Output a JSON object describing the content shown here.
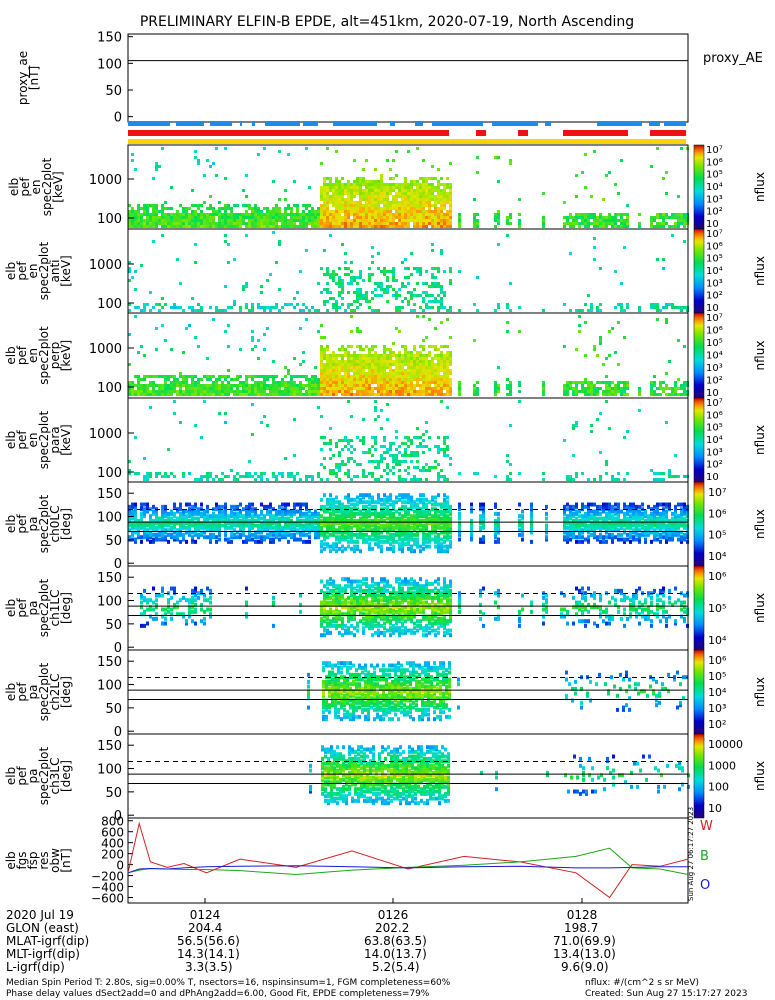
{
  "title": "PRELIMINARY ELFIN-B EPDE, alt=451km, 2020-07-19, North Ascending",
  "chart_data": [
    {
      "type": "line",
      "name": "proxy_ae",
      "ylabel": [
        "proxy_ae",
        "[nT]"
      ],
      "legend": "proxy_AE",
      "ylim": [
        -10,
        155
      ],
      "yticks": [
        "150",
        "100",
        "50",
        "0"
      ],
      "reference_line": 105
    },
    {
      "type": "heatmap",
      "ylabel": [
        "elb",
        "pef",
        "en",
        "spec2plot",
        "[keV]"
      ],
      "yticks": [
        "1000",
        "100"
      ],
      "colorbar_label": "nflux",
      "colorbar_max_exp": 7,
      "colorbar_min_exp": 1
    },
    {
      "type": "heatmap",
      "ylabel": [
        "elb",
        "pef",
        "en",
        "spec2plot",
        "anti",
        "[keV]"
      ],
      "yticks": [
        "1000",
        "100"
      ],
      "colorbar_label": "nflux",
      "colorbar_max_exp": 7,
      "colorbar_min_exp": 1
    },
    {
      "type": "heatmap",
      "ylabel": [
        "elb",
        "pef",
        "en",
        "spec2plot",
        "perp",
        "[keV]"
      ],
      "yticks": [
        "1000",
        "100"
      ],
      "colorbar_label": "nflux",
      "colorbar_max_exp": 7,
      "colorbar_min_exp": 1
    },
    {
      "type": "heatmap",
      "ylabel": [
        "elb",
        "pef",
        "en",
        "spec2plot",
        "para",
        "[keV]"
      ],
      "yticks": [
        "1000",
        "100"
      ],
      "colorbar_label": "nflux",
      "colorbar_max_exp": 7,
      "colorbar_min_exp": 1
    },
    {
      "type": "heatmap",
      "ylabel": [
        "elb",
        "pef",
        "pa",
        "spec2plot",
        "ch0LC",
        "[deg]"
      ],
      "yticks": [
        "150",
        "100",
        "50",
        "0"
      ],
      "colorbar_label": "nflux",
      "colorbar_ticks": [
        "10⁷",
        "10⁶",
        "10⁵",
        "10⁴"
      ]
    },
    {
      "type": "heatmap",
      "ylabel": [
        "elb",
        "pef",
        "pa",
        "spec2plot",
        "ch1LC",
        "[deg]"
      ],
      "yticks": [
        "150",
        "100",
        "50",
        "0"
      ],
      "colorbar_label": "nflux",
      "colorbar_ticks": [
        "10⁶",
        "10⁵",
        "10⁴"
      ]
    },
    {
      "type": "heatmap",
      "ylabel": [
        "elb",
        "pef",
        "pa",
        "spec2plot",
        "ch2LC",
        "[deg]"
      ],
      "yticks": [
        "150",
        "100",
        "50",
        "0"
      ],
      "colorbar_label": "nflux",
      "colorbar_ticks": [
        "10⁶",
        "10⁵",
        "10⁴",
        "10³",
        "10²"
      ]
    },
    {
      "type": "heatmap",
      "ylabel": [
        "elb",
        "pef",
        "pa",
        "spec2plot",
        "ch3LC",
        "[deg]"
      ],
      "yticks": [
        "150",
        "100",
        "50",
        "0"
      ],
      "colorbar_label": "nflux",
      "colorbar_ticks": [
        "10000",
        "1000",
        "100",
        "10"
      ]
    },
    {
      "type": "line",
      "ylabel": [
        "elb",
        "fgs",
        "fsp",
        "res",
        "obw",
        "[nT]"
      ],
      "yticks": [
        "800",
        "600",
        "400",
        "200",
        "0",
        "−200",
        "−400",
        "−600"
      ],
      "ylim": [
        -700,
        850
      ],
      "legend": [
        "W",
        "B",
        "O"
      ],
      "colors": {
        "W": "#d41f1f",
        "B": "#1aa81a",
        "O": "#1a1ad4"
      },
      "x": [
        0,
        0.02,
        0.04,
        0.07,
        0.1,
        0.14,
        0.2,
        0.3,
        0.4,
        0.5,
        0.6,
        0.7,
        0.8,
        0.86,
        0.9,
        0.95,
        1.0
      ],
      "series": [
        {
          "name": "W",
          "values": [
            -150,
            750,
            50,
            -50,
            20,
            -150,
            100,
            -50,
            250,
            -80,
            150,
            50,
            -150,
            -600,
            0,
            -30,
            100
          ]
        },
        {
          "name": "B",
          "values": [
            -150,
            -100,
            -70,
            -80,
            -90,
            -90,
            -110,
            -180,
            -100,
            -50,
            -10,
            50,
            150,
            300,
            -60,
            -80,
            -180
          ]
        },
        {
          "name": "O",
          "values": [
            -150,
            -80,
            -70,
            -80,
            -60,
            -40,
            -30,
            -20,
            -40,
            -60,
            -40,
            -30,
            -60,
            -60,
            -50,
            -40,
            -40
          ]
        }
      ],
      "stamp": "Sun Aug 27 06:17:27 2023"
    }
  ],
  "time_axis": {
    "ticks": [
      "0124",
      "0126",
      "0128"
    ]
  },
  "ephemeris": {
    "labels": [
      "2020 Jul 19",
      "GLON (east)",
      "MLAT-igrf(dip)",
      "MLT-igrf(dip)",
      "L-igrf(dip)"
    ],
    "columns": [
      [
        "",
        "204.4",
        "56.5(56.6)",
        "14.3(14.1)",
        "3.3(3.5)"
      ],
      [
        "",
        "202.2",
        "63.8(63.5)",
        "14.0(13.7)",
        "5.2(5.4)"
      ],
      [
        "",
        "198.7",
        "71.0(69.9)",
        "13.4(13.0)",
        "9.6(9.0)"
      ]
    ]
  },
  "footer": {
    "line1": "Median Spin Period T: 2.80s, sig=0.00% T, nsectors=16, nspinsinsum=1, FGM completeness=60%",
    "line2": "Phase delay values dSect2add=0 and dPhAng2add=6.00, Good Fit, EPDE completeness=79%",
    "units": "nflux: #/(cm^2 s sr MeV)",
    "created": "Created: Sun Aug 27 15:17:27 2023"
  }
}
